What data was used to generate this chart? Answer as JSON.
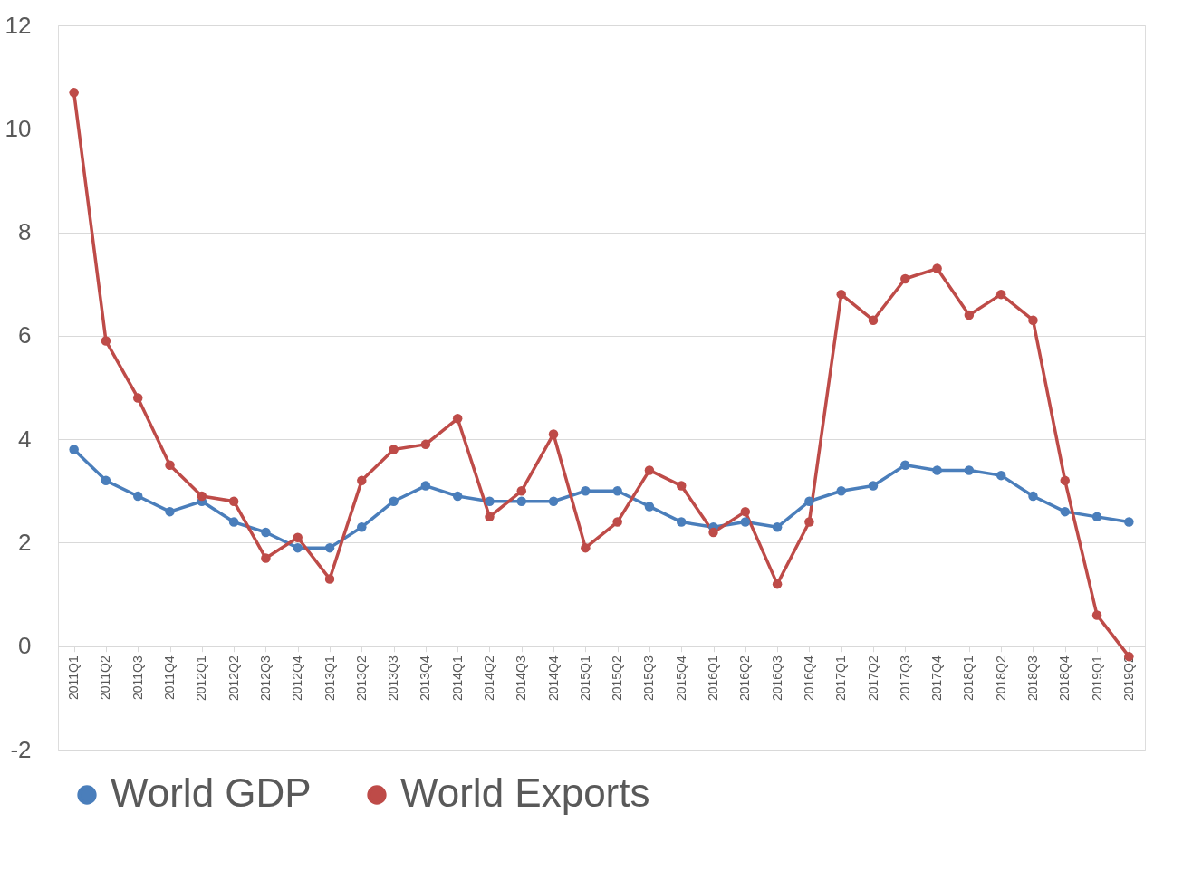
{
  "chart_data": {
    "type": "line",
    "categories": [
      "2011Q1",
      "2011Q2",
      "2011Q3",
      "2011Q4",
      "2012Q1",
      "2012Q2",
      "2012Q3",
      "2012Q4",
      "2013Q1",
      "2013Q2",
      "2013Q3",
      "2013Q4",
      "2014Q1",
      "2014Q2",
      "2014Q3",
      "2014Q4",
      "2015Q1",
      "2015Q2",
      "2015Q3",
      "2015Q4",
      "2016Q1",
      "2016Q2",
      "2016Q3",
      "2016Q4",
      "2017Q1",
      "2017Q2",
      "2017Q3",
      "2017Q4",
      "2018Q1",
      "2018Q2",
      "2018Q3",
      "2018Q4",
      "2019Q1",
      "2019Q2"
    ],
    "series": [
      {
        "name": "World GDP",
        "color": "#4a7ebb",
        "values": [
          3.8,
          3.2,
          2.9,
          2.6,
          2.8,
          2.4,
          2.2,
          1.9,
          1.9,
          2.3,
          2.8,
          3.1,
          2.9,
          2.8,
          2.8,
          2.8,
          3.0,
          3.0,
          2.7,
          2.4,
          2.3,
          2.4,
          2.3,
          2.8,
          3.0,
          3.1,
          3.5,
          3.4,
          3.4,
          3.3,
          2.9,
          2.6,
          2.5,
          2.4
        ]
      },
      {
        "name": "World Exports",
        "color": "#be4b48",
        "values": [
          10.7,
          5.9,
          4.8,
          3.5,
          2.9,
          2.8,
          1.7,
          2.1,
          1.3,
          3.2,
          3.8,
          3.9,
          4.4,
          2.5,
          3.0,
          4.1,
          1.9,
          2.4,
          3.4,
          3.1,
          2.2,
          2.6,
          1.2,
          2.4,
          6.8,
          6.3,
          7.1,
          7.3,
          6.4,
          6.8,
          6.3,
          3.2,
          0.6,
          -0.2
        ]
      }
    ],
    "ylim": [
      -2,
      12
    ],
    "yticks": [
      -2,
      0,
      2,
      4,
      6,
      8,
      10,
      12
    ],
    "grid": "y",
    "legend": "bottom",
    "marker": "circle",
    "line_style": "solid"
  }
}
